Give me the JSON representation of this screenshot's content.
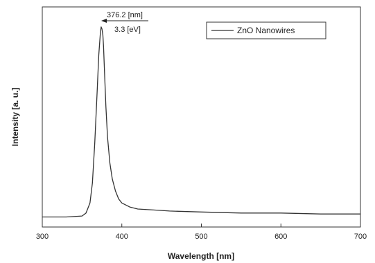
{
  "chart_data": {
    "type": "line",
    "xlabel": "Wavelength [nm]",
    "ylabel": "Intensity [a. u.]",
    "xlim": [
      300,
      700
    ],
    "ylim": [
      0,
      1.1
    ],
    "xticks": [
      300,
      400,
      500,
      600,
      700
    ],
    "grid": false,
    "legend_position": "top-right",
    "series": [
      {
        "name": "ZnO Nanowires",
        "color": "#333333",
        "x": [
          300,
          330,
          350,
          355,
          360,
          363,
          366,
          369,
          371,
          373,
          374,
          375,
          376.2,
          377,
          378,
          380,
          382,
          385,
          388,
          392,
          396,
          400,
          410,
          420,
          440,
          460,
          500,
          550,
          600,
          650,
          700
        ],
        "y": [
          0.05,
          0.05,
          0.055,
          0.07,
          0.12,
          0.22,
          0.42,
          0.68,
          0.86,
          0.97,
          1.0,
          0.99,
          0.96,
          0.9,
          0.8,
          0.6,
          0.45,
          0.32,
          0.24,
          0.18,
          0.14,
          0.12,
          0.1,
          0.09,
          0.085,
          0.08,
          0.075,
          0.07,
          0.07,
          0.065,
          0.065
        ]
      }
    ],
    "annotations": [
      {
        "text_top": "376.2 [nm]",
        "text_bottom": "3.3 [eV]",
        "x": 376.2,
        "y": 1.0,
        "arrow": "left"
      }
    ]
  }
}
